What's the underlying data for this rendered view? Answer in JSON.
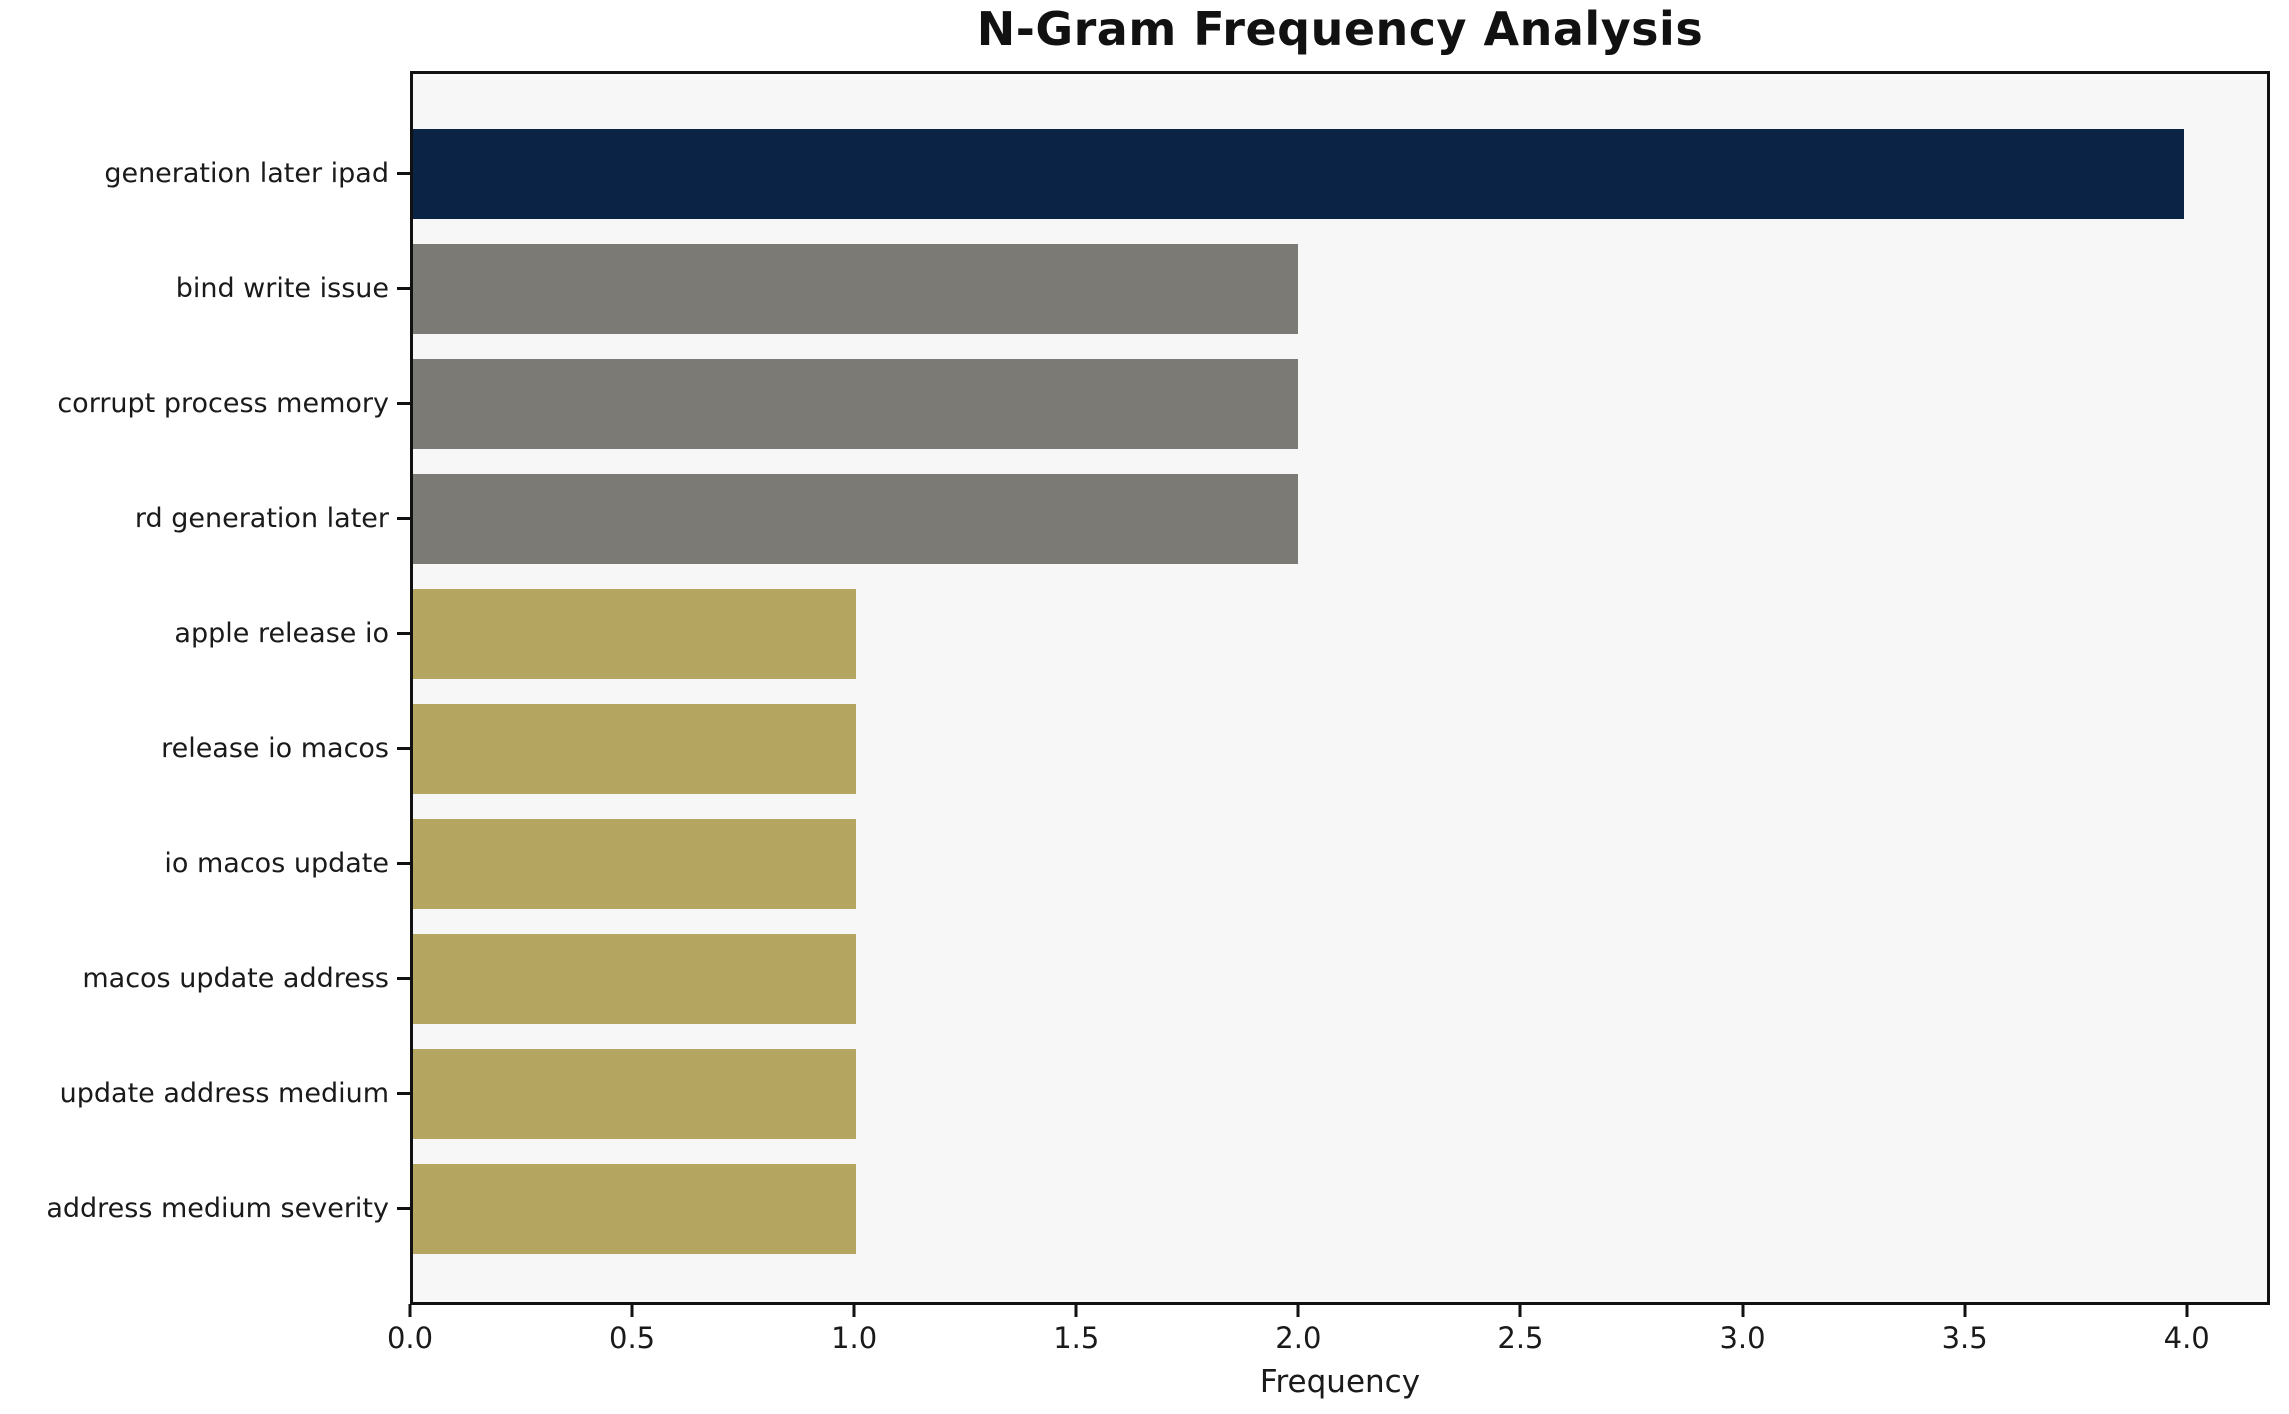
{
  "title": "N-Gram Frequency Analysis",
  "chart_data": {
    "type": "bar",
    "orientation": "horizontal",
    "title": "N-Gram Frequency Analysis",
    "xlabel": "Frequency",
    "ylabel": "",
    "categories": [
      "generation later ipad",
      "bind write issue",
      "corrupt process memory",
      "rd generation later",
      "apple release io",
      "release io macos",
      "io macos update",
      "macos update address",
      "update address medium",
      "address medium severity"
    ],
    "values": [
      4,
      2,
      2,
      2,
      1,
      1,
      1,
      1,
      1,
      1
    ],
    "bar_colors": [
      "#0b2344",
      "#7c7a74",
      "#7c7a74",
      "#7c7a74",
      "#b4a661",
      "#b4a661",
      "#b4a661",
      "#b4a661",
      "#b4a661",
      "#b4a661"
    ],
    "xticks": [
      0.0,
      0.5,
      1.0,
      1.5,
      2.0,
      2.5,
      3.0,
      3.5,
      4.0
    ],
    "xtick_labels": [
      "0.0",
      "0.5",
      "1.0",
      "1.5",
      "2.0",
      "2.5",
      "3.0",
      "3.5",
      "4.0"
    ],
    "xlim": [
      0,
      4.1875
    ],
    "grid": false,
    "legend": false,
    "plot_background": "#f7f7f7",
    "figure_background": "#ffffff",
    "spine_color": "#111111",
    "text_color": "#1a1a1a"
  }
}
